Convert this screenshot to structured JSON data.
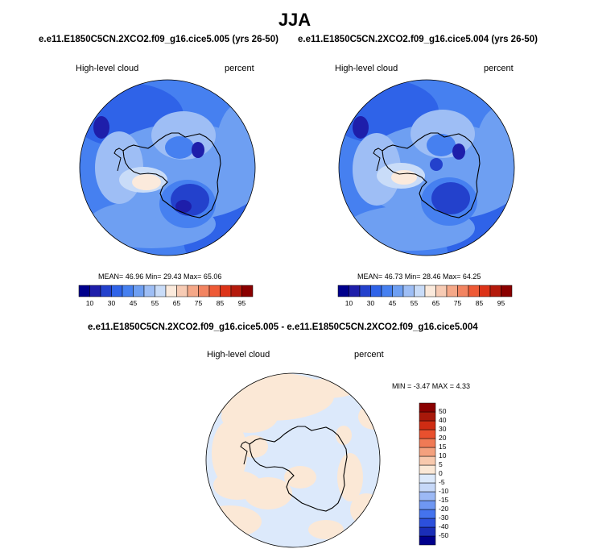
{
  "title": "JJA",
  "panels": [
    {
      "case": "e.e11.E1850C5CN.2XCO2.f09_g16.cice5.005 (yrs 26-50)",
      "variable": "High-level cloud",
      "units": "percent",
      "stats_text": "MEAN=  46.96  Min=  29.43  Max=  65.06",
      "stats": {
        "mean": 46.96,
        "min": 29.43,
        "max": 65.06
      }
    },
    {
      "case": "e.e11.E1850C5CN.2XCO2.f09_g16.cice5.004 (yrs 26-50)",
      "variable": "High-level cloud",
      "units": "percent",
      "stats_text": "MEAN=  46.73  Min=  28.46  Max=  64.25",
      "stats": {
        "mean": 46.73,
        "min": 28.46,
        "max": 64.25
      }
    }
  ],
  "diff_panel": {
    "case": "e.e11.E1850C5CN.2XCO2.f09_g16.cice5.005 - e.e11.E1850C5CN.2XCO2.f09_g16.cice5.004",
    "variable": "High-level cloud",
    "units": "percent",
    "stats_text": "MIN =  -3.47 MAX =   4.33",
    "stats": {
      "min": -3.47,
      "max": 4.33
    }
  },
  "colorbar": {
    "colors": [
      "#00008c",
      "#1e1eaa",
      "#2341cc",
      "#2f63e8",
      "#4680f0",
      "#6e9ff2",
      "#9ebef5",
      "#c9dcf8",
      "#fbeadc",
      "#f7cbb4",
      "#f5a888",
      "#f28461",
      "#ee5a36",
      "#dc3318",
      "#b41a0c",
      "#8a0000"
    ],
    "tick_labels": [
      "10",
      "30",
      "45",
      "55",
      "65",
      "75",
      "85",
      "95"
    ]
  },
  "diff_colorbar": {
    "colors": [
      "#00008c",
      "#1a2eb8",
      "#2c50dc",
      "#4473ee",
      "#6f97f2",
      "#9cb9f5",
      "#c6d8f8",
      "#dce9fb",
      "#fbe8d6",
      "#f8c9ad",
      "#f4a17e",
      "#f07a55",
      "#e9502e",
      "#cf2c13",
      "#a8180a",
      "#8a0000"
    ],
    "tick_labels": [
      "-50",
      "-40",
      "-30",
      "-20",
      "-15",
      "-10",
      "-5",
      "0",
      "5",
      "10",
      "15",
      "20",
      "30",
      "40",
      "50"
    ]
  }
}
